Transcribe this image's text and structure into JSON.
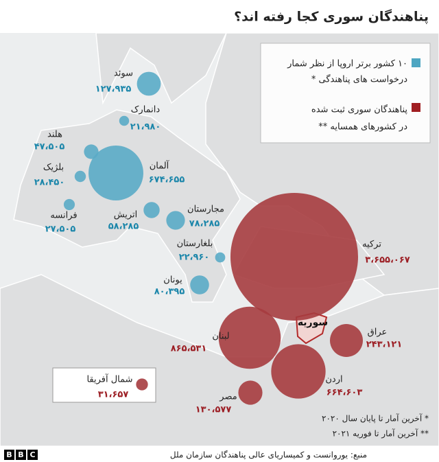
{
  "title": "پناهندگان سوری کجا رفته اند؟",
  "legend": [
    {
      "lines": [
        "۱۰ کشور برتر اروپا از نظر شمار",
        "درخواست های پناهندگی *"
      ]
    },
    {
      "lines": [
        "پناهندگان سوری ثبت شده",
        "در کشورهای همسایه **"
      ]
    }
  ],
  "europe": [
    {
      "name": "سوئد",
      "value": 127935,
      "value_label": "۱۲۷،۹۳۵"
    },
    {
      "name": "دانمارک",
      "value": 21980,
      "value_label": "۲۱،۹۸۰"
    },
    {
      "name": "هلند",
      "value": 47505,
      "value_label": "۴۷،۵۰۵"
    },
    {
      "name": "بلژیک",
      "value": 28450,
      "value_label": "۲۸،۴۵۰"
    },
    {
      "name": "آلمان",
      "value": 674655,
      "value_label": "۶۷۴،۶۵۵"
    },
    {
      "name": "فرانسه",
      "value": 27505,
      "value_label": "۲۷،۵۰۵"
    },
    {
      "name": "اتریش",
      "value": 58285,
      "value_label": "۵۸،۲۸۵"
    },
    {
      "name": "مجارستان",
      "value": 78285,
      "value_label": "۷۸،۲۸۵"
    },
    {
      "name": "بلغارستان",
      "value": 22960,
      "value_label": "۲۲،۹۶۰"
    },
    {
      "name": "یونان",
      "value": 80395,
      "value_label": "۸۰،۳۹۵"
    }
  ],
  "neighbours": [
    {
      "name": "ترکیه",
      "value": 3655067,
      "value_label": "۳،۶۵۵،۰۶۷"
    },
    {
      "name": "لبنان",
      "value": 865531,
      "value_label": "۸۶۵،۵۳۱"
    },
    {
      "name": "عراق",
      "value": 243121,
      "value_label": "۲۴۳،۱۲۱"
    },
    {
      "name": "اردن",
      "value": 664603,
      "value_label": "۶۶۴،۶۰۳"
    },
    {
      "name": "مصر",
      "value": 130577,
      "value_label": "۱۳۰،۵۷۷"
    },
    {
      "name": "شمال آفریقا",
      "value": 31657,
      "value_label": "۳۱،۶۵۷"
    }
  ],
  "syria_label": "سوریه",
  "notes": [
    "* آخرین آمار تا پایان سال ۲۰۲۰",
    "** آخرین آمار تا فوریه ۲۰۲۱"
  ],
  "source": "منبع: یوروانست و کمیساریای عالی پناهندگان سازمان ملل",
  "logo": [
    "B",
    "B",
    "C"
  ]
}
